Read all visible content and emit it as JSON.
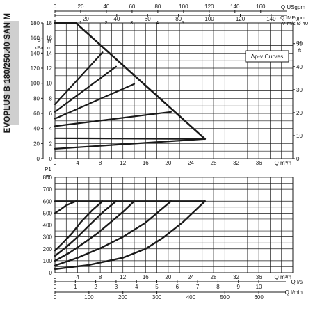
{
  "model_label": "EVOPLUS B 180/250.40 SAN M",
  "legend_label": "Δp-v Curves",
  "colors": {
    "line": "#1a1a1a",
    "grid": "#1a1a1a",
    "background": "#ffffff",
    "side_band": "#cfcfcf"
  },
  "chart_data": [
    {
      "type": "line",
      "name": "head-vs-flow",
      "x_unit": "Q m³/h",
      "xlim": [
        0,
        42
      ],
      "x_ticks": [
        0,
        4,
        8,
        12,
        16,
        20,
        24,
        28,
        32,
        36
      ],
      "left_axis": {
        "label_top": "P",
        "label_bottom": "kPa",
        "ylim": [
          0,
          180
        ],
        "ticks": [
          0,
          20,
          40,
          60,
          80,
          100,
          120,
          140,
          160,
          180
        ]
      },
      "mid_axis": {
        "label": "H m",
        "ylim": [
          0,
          18
        ],
        "ticks": [
          0,
          2,
          4,
          6,
          8,
          10,
          12,
          14,
          16,
          18
        ]
      },
      "right_axis": {
        "label_top": "H",
        "label_bottom": "ft",
        "ylim": [
          0,
          59
        ],
        "ticks": [
          0,
          10,
          20,
          30,
          40,
          50
        ]
      },
      "top_axes": [
        {
          "unit_label": "Q USgpm",
          "max": 185,
          "ticks": [
            0,
            20,
            40,
            60,
            80,
            100,
            120,
            140,
            160
          ]
        },
        {
          "unit_label": "Q IMPgpm",
          "max": 154,
          "ticks": [
            0,
            20,
            40,
            60,
            80,
            100,
            120,
            140
          ]
        },
        {
          "unit_label": "V m/s Ø 40",
          "max": 9.3,
          "ticks": [
            0,
            1,
            2,
            3,
            4,
            5
          ]
        }
      ],
      "series": [
        {
          "x": [
            0,
            3.7,
            26.5
          ],
          "y": [
            18,
            18,
            2.6
          ]
        },
        {
          "x": [
            0,
            26.5
          ],
          "y": [
            1.3,
            2.6
          ]
        },
        {
          "x": [
            0,
            26.5
          ],
          "y": [
            2.7,
            2.6
          ]
        },
        {
          "x": [
            0,
            20.5
          ],
          "y": [
            4.3,
            6.2
          ]
        },
        {
          "x": [
            0,
            14
          ],
          "y": [
            5.3,
            9.9
          ]
        },
        {
          "x": [
            0,
            10.8
          ],
          "y": [
            6.2,
            12.2
          ]
        },
        {
          "x": [
            0,
            8.4
          ],
          "y": [
            7.2,
            14.1
          ]
        }
      ]
    },
    {
      "type": "line",
      "name": "power-vs-flow",
      "x_unit": "Q m³/h",
      "xlim": [
        0,
        42
      ],
      "x_ticks": [
        0,
        4,
        8,
        12,
        16,
        20,
        24,
        28,
        32,
        36
      ],
      "y_axis": {
        "label_top": "P1",
        "label_bottom": "W",
        "ylim": [
          0,
          800
        ],
        "ticks": [
          0,
          100,
          200,
          300,
          400,
          500,
          600,
          700,
          800
        ]
      },
      "bottom_axes": [
        {
          "unit_label": "Q l/s",
          "max": 11.67,
          "ticks": [
            0,
            1,
            2,
            3,
            4,
            5,
            6,
            7,
            8,
            9,
            10
          ]
        },
        {
          "unit_label": "Q l/min",
          "max": 700,
          "ticks": [
            0,
            100,
            200,
            300,
            400,
            500,
            600
          ]
        }
      ],
      "series": [
        {
          "x": [
            0,
            26.5
          ],
          "y": [
            600,
            600
          ]
        },
        {
          "x": [
            0,
            1,
            2,
            3.7
          ],
          "y": [
            500,
            530,
            565,
            600
          ]
        },
        {
          "x": [
            0,
            1.5,
            3,
            4.5,
            6.5,
            8.4
          ],
          "y": [
            185,
            255,
            330,
            420,
            520,
            600
          ]
        },
        {
          "x": [
            0,
            2,
            4,
            6,
            8.5,
            10.8
          ],
          "y": [
            140,
            215,
            300,
            395,
            510,
            600
          ]
        },
        {
          "x": [
            0,
            2.5,
            5,
            7.5,
            10,
            12,
            14
          ],
          "y": [
            100,
            165,
            245,
            330,
            430,
            510,
            600
          ]
        },
        {
          "x": [
            0,
            4,
            8,
            12,
            16,
            20.5
          ],
          "y": [
            60,
            125,
            205,
            300,
            420,
            600
          ]
        },
        {
          "x": [
            0,
            6,
            12,
            16,
            19,
            22.5,
            26.5
          ],
          "y": [
            30,
            65,
            125,
            200,
            290,
            420,
            600
          ]
        }
      ]
    }
  ]
}
